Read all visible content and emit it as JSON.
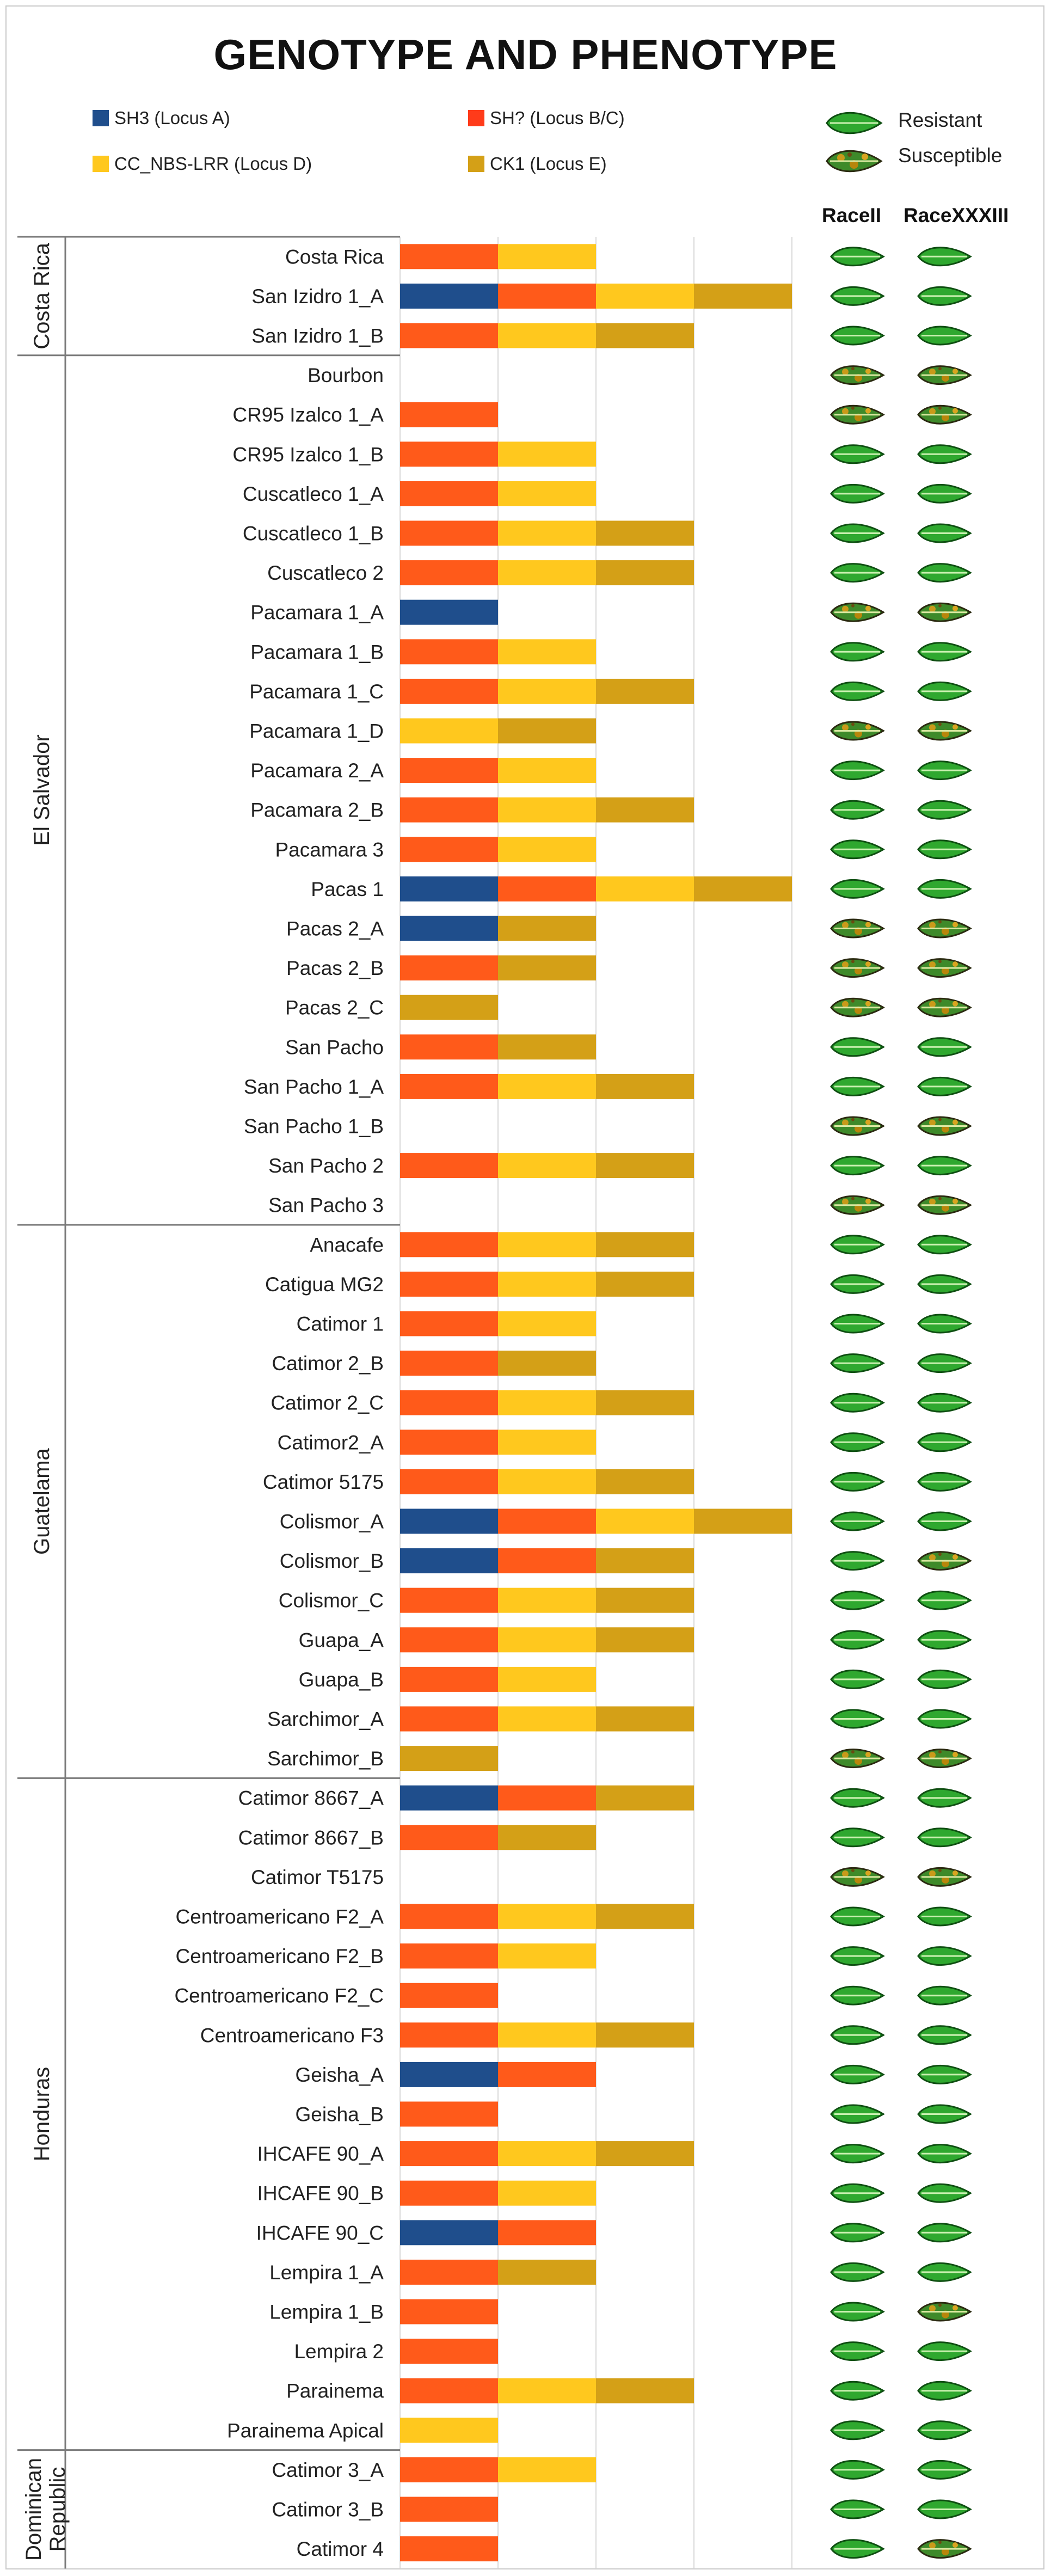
{
  "chart_data": {
    "type": "bar",
    "stacked": true,
    "title": "GENOTYPE AND PHENOTYPE",
    "series": [
      {
        "name": "SH3 (Locus A)",
        "key": "A",
        "color": "#1f4e8c"
      },
      {
        "name": "SH? (Locus B/C)",
        "key": "B",
        "color": "#ff5a1a"
      },
      {
        "name": "CC_NBS-LRR (Locus D)",
        "key": "D",
        "color": "#ffc81e"
      },
      {
        "name": "CK1 (Locus E)",
        "key": "E",
        "color": "#d4a017"
      }
    ],
    "phenotype_legend": {
      "resistant": "Resistant",
      "susceptible": "Susceptible"
    },
    "phenotype_columns": [
      "RaceII",
      "RaceXXXIII"
    ],
    "groups": [
      {
        "country": "Costa Rica",
        "rows": [
          {
            "name": "Costa Rica",
            "loci": [
              "B",
              "D"
            ],
            "pheno": [
              "R",
              "R"
            ]
          },
          {
            "name": "San Izidro 1_A",
            "loci": [
              "A",
              "B",
              "D",
              "E"
            ],
            "pheno": [
              "R",
              "R"
            ]
          },
          {
            "name": "San Izidro 1_B",
            "loci": [
              "B",
              "D",
              "E"
            ],
            "pheno": [
              "R",
              "R"
            ]
          }
        ]
      },
      {
        "country": "El Salvador",
        "rows": [
          {
            "name": "Bourbon",
            "loci": [],
            "pheno": [
              "S",
              "S"
            ]
          },
          {
            "name": "CR95 Izalco 1_A",
            "loci": [
              "B"
            ],
            "pheno": [
              "S",
              "S"
            ]
          },
          {
            "name": "CR95 Izalco 1_B",
            "loci": [
              "B",
              "D"
            ],
            "pheno": [
              "R",
              "R"
            ]
          },
          {
            "name": "Cuscatleco 1_A",
            "loci": [
              "B",
              "D"
            ],
            "pheno": [
              "R",
              "R"
            ]
          },
          {
            "name": "Cuscatleco 1_B",
            "loci": [
              "B",
              "D",
              "E"
            ],
            "pheno": [
              "R",
              "R"
            ]
          },
          {
            "name": "Cuscatleco 2",
            "loci": [
              "B",
              "D",
              "E"
            ],
            "pheno": [
              "R",
              "R"
            ]
          },
          {
            "name": "Pacamara 1_A",
            "loci": [
              "A"
            ],
            "pheno": [
              "S",
              "S"
            ]
          },
          {
            "name": "Pacamara 1_B",
            "loci": [
              "B",
              "D"
            ],
            "pheno": [
              "R",
              "R"
            ]
          },
          {
            "name": "Pacamara 1_C",
            "loci": [
              "B",
              "D",
              "E"
            ],
            "pheno": [
              "R",
              "R"
            ]
          },
          {
            "name": "Pacamara 1_D",
            "loci": [
              "D",
              "E"
            ],
            "pheno": [
              "S",
              "S"
            ]
          },
          {
            "name": "Pacamara 2_A",
            "loci": [
              "B",
              "D"
            ],
            "pheno": [
              "R",
              "R"
            ]
          },
          {
            "name": "Pacamara 2_B",
            "loci": [
              "B",
              "D",
              "E"
            ],
            "pheno": [
              "R",
              "R"
            ]
          },
          {
            "name": "Pacamara 3",
            "loci": [
              "B",
              "D"
            ],
            "pheno": [
              "R",
              "R"
            ]
          },
          {
            "name": "Pacas 1",
            "loci": [
              "A",
              "B",
              "D",
              "E"
            ],
            "pheno": [
              "R",
              "R"
            ]
          },
          {
            "name": "Pacas 2_A",
            "loci": [
              "A",
              "E"
            ],
            "pheno": [
              "S",
              "S"
            ]
          },
          {
            "name": "Pacas 2_B",
            "loci": [
              "B",
              "E"
            ],
            "pheno": [
              "S",
              "S"
            ]
          },
          {
            "name": "Pacas 2_C",
            "loci": [
              "E"
            ],
            "pheno": [
              "S",
              "S"
            ]
          },
          {
            "name": "San Pacho",
            "loci": [
              "B",
              "E"
            ],
            "pheno": [
              "R",
              "R"
            ]
          },
          {
            "name": "San Pacho 1_A",
            "loci": [
              "B",
              "D",
              "E"
            ],
            "pheno": [
              "R",
              "R"
            ]
          },
          {
            "name": "San Pacho 1_B",
            "loci": [],
            "pheno": [
              "S",
              "S"
            ]
          },
          {
            "name": "San Pacho 2",
            "loci": [
              "B",
              "D",
              "E"
            ],
            "pheno": [
              "R",
              "R"
            ]
          },
          {
            "name": "San Pacho 3",
            "loci": [],
            "pheno": [
              "S",
              "S"
            ]
          }
        ]
      },
      {
        "country": "Guatelama",
        "rows": [
          {
            "name": "Anacafe",
            "loci": [
              "B",
              "D",
              "E"
            ],
            "pheno": [
              "R",
              "R"
            ]
          },
          {
            "name": "Catigua MG2",
            "loci": [
              "B",
              "D",
              "E"
            ],
            "pheno": [
              "R",
              "R"
            ]
          },
          {
            "name": "Catimor 1",
            "loci": [
              "B",
              "D"
            ],
            "pheno": [
              "R",
              "R"
            ]
          },
          {
            "name": "Catimor 2_B",
            "loci": [
              "B",
              "E"
            ],
            "pheno": [
              "R",
              "R"
            ]
          },
          {
            "name": "Catimor 2_C",
            "loci": [
              "B",
              "D",
              "E"
            ],
            "pheno": [
              "R",
              "R"
            ]
          },
          {
            "name": "Catimor2_A",
            "loci": [
              "B",
              "D"
            ],
            "pheno": [
              "R",
              "R"
            ]
          },
          {
            "name": "Catimor 5175",
            "loci": [
              "B",
              "D",
              "E"
            ],
            "pheno": [
              "R",
              "R"
            ]
          },
          {
            "name": "Colismor_A",
            "loci": [
              "A",
              "B",
              "D",
              "E"
            ],
            "pheno": [
              "R",
              "R"
            ]
          },
          {
            "name": "Colismor_B",
            "loci": [
              "A",
              "B",
              "E"
            ],
            "pheno": [
              "R",
              "S"
            ]
          },
          {
            "name": "Colismor_C",
            "loci": [
              "B",
              "D",
              "E"
            ],
            "pheno": [
              "R",
              "R"
            ]
          },
          {
            "name": "Guapa_A",
            "loci": [
              "B",
              "D",
              "E"
            ],
            "pheno": [
              "R",
              "R"
            ]
          },
          {
            "name": "Guapa_B",
            "loci": [
              "B",
              "D"
            ],
            "pheno": [
              "R",
              "R"
            ]
          },
          {
            "name": "Sarchimor_A",
            "loci": [
              "B",
              "D",
              "E"
            ],
            "pheno": [
              "R",
              "R"
            ]
          },
          {
            "name": "Sarchimor_B",
            "loci": [
              "E"
            ],
            "pheno": [
              "S",
              "S"
            ]
          }
        ]
      },
      {
        "country": "Honduras",
        "rows": [
          {
            "name": "Catimor 8667_A",
            "loci": [
              "A",
              "B",
              "E"
            ],
            "pheno": [
              "R",
              "R"
            ]
          },
          {
            "name": "Catimor 8667_B",
            "loci": [
              "B",
              "E"
            ],
            "pheno": [
              "R",
              "R"
            ]
          },
          {
            "name": "Catimor T5175",
            "loci": [],
            "pheno": [
              "S",
              "S"
            ]
          },
          {
            "name": "Centroamericano F2_A",
            "loci": [
              "B",
              "D",
              "E"
            ],
            "pheno": [
              "R",
              "R"
            ]
          },
          {
            "name": "Centroamericano F2_B",
            "loci": [
              "B",
              "D"
            ],
            "pheno": [
              "R",
              "R"
            ]
          },
          {
            "name": "Centroamericano F2_C",
            "loci": [
              "B"
            ],
            "pheno": [
              "R",
              "R"
            ]
          },
          {
            "name": "Centroamericano F3",
            "loci": [
              "B",
              "D",
              "E"
            ],
            "pheno": [
              "R",
              "R"
            ]
          },
          {
            "name": "Geisha_A",
            "loci": [
              "A",
              "B"
            ],
            "pheno": [
              "R",
              "R"
            ]
          },
          {
            "name": "Geisha_B",
            "loci": [
              "B"
            ],
            "pheno": [
              "R",
              "R"
            ]
          },
          {
            "name": "IHCAFE 90_A",
            "loci": [
              "B",
              "D",
              "E"
            ],
            "pheno": [
              "R",
              "R"
            ]
          },
          {
            "name": "IHCAFE 90_B",
            "loci": [
              "B",
              "D"
            ],
            "pheno": [
              "R",
              "R"
            ]
          },
          {
            "name": "IHCAFE 90_C",
            "loci": [
              "A",
              "B"
            ],
            "pheno": [
              "R",
              "R"
            ]
          },
          {
            "name": "Lempira 1_A",
            "loci": [
              "B",
              "E"
            ],
            "pheno": [
              "R",
              "R"
            ]
          },
          {
            "name": "Lempira 1_B",
            "loci": [
              "B"
            ],
            "pheno": [
              "R",
              "S"
            ]
          },
          {
            "name": "Lempira 2",
            "loci": [
              "B"
            ],
            "pheno": [
              "R",
              "R"
            ]
          },
          {
            "name": "Parainema",
            "loci": [
              "B",
              "D",
              "E"
            ],
            "pheno": [
              "R",
              "R"
            ]
          },
          {
            "name": "Parainema Apical",
            "loci": [
              "D"
            ],
            "pheno": [
              "R",
              "R"
            ]
          }
        ]
      },
      {
        "country": "Dominican Republic",
        "country_lines": [
          "Dominican",
          "Republic"
        ],
        "rows": [
          {
            "name": "Catimor 3_A",
            "loci": [
              "B",
              "D"
            ],
            "pheno": [
              "R",
              "R"
            ]
          },
          {
            "name": "Catimor 3_B",
            "loci": [
              "B"
            ],
            "pheno": [
              "R",
              "R"
            ]
          },
          {
            "name": "Catimor 4",
            "loci": [
              "B"
            ],
            "pheno": [
              "R",
              "S"
            ]
          }
        ]
      }
    ]
  }
}
